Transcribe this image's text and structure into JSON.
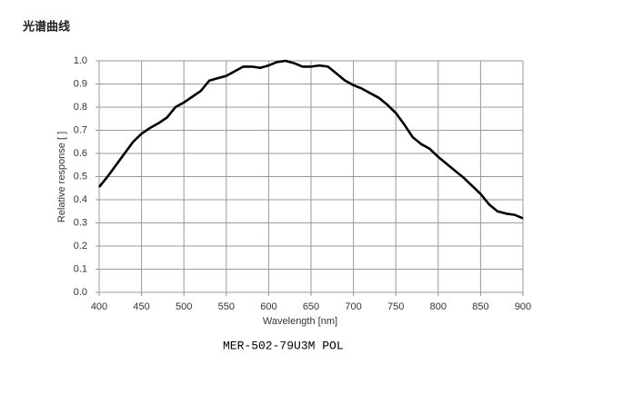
{
  "header": {
    "title": "光谱曲线"
  },
  "chart_data": {
    "type": "line",
    "xlabel": "Wavelength [nm]",
    "ylabel": "Relative response [ ]",
    "x": [
      400,
      410,
      420,
      430,
      440,
      450,
      460,
      470,
      480,
      490,
      500,
      510,
      520,
      530,
      540,
      550,
      560,
      570,
      580,
      590,
      600,
      610,
      620,
      630,
      640,
      650,
      660,
      670,
      680,
      690,
      700,
      710,
      720,
      730,
      740,
      750,
      760,
      770,
      780,
      790,
      800,
      810,
      820,
      830,
      840,
      850,
      860,
      870,
      880,
      890,
      900
    ],
    "series": [
      {
        "name": "Relative response",
        "color": "#000000",
        "values": [
          0.455,
          0.5,
          0.55,
          0.6,
          0.65,
          0.685,
          0.71,
          0.73,
          0.755,
          0.8,
          0.82,
          0.845,
          0.87,
          0.915,
          0.925,
          0.935,
          0.955,
          0.975,
          0.975,
          0.97,
          0.98,
          0.995,
          1.0,
          0.99,
          0.975,
          0.975,
          0.98,
          0.975,
          0.945,
          0.915,
          0.895,
          0.88,
          0.86,
          0.84,
          0.81,
          0.775,
          0.725,
          0.67,
          0.64,
          0.62,
          0.585,
          0.555,
          0.525,
          0.495,
          0.46,
          0.425,
          0.38,
          0.35,
          0.34,
          0.335,
          0.32
        ]
      }
    ],
    "xlim": [
      400,
      900
    ],
    "xticks": [
      400,
      450,
      500,
      550,
      600,
      650,
      700,
      750,
      800,
      850,
      900
    ],
    "ylim": [
      0,
      1
    ],
    "yticks": [
      {
        "value": 0,
        "label": "0.0"
      },
      0.1,
      0.2,
      0.3,
      0.4,
      0.5,
      0.6,
      0.7,
      0.8,
      0.9,
      {
        "value": 1,
        "label": "1.0"
      }
    ],
    "grid": true
  },
  "caption": "MER-502-79U3M POL"
}
